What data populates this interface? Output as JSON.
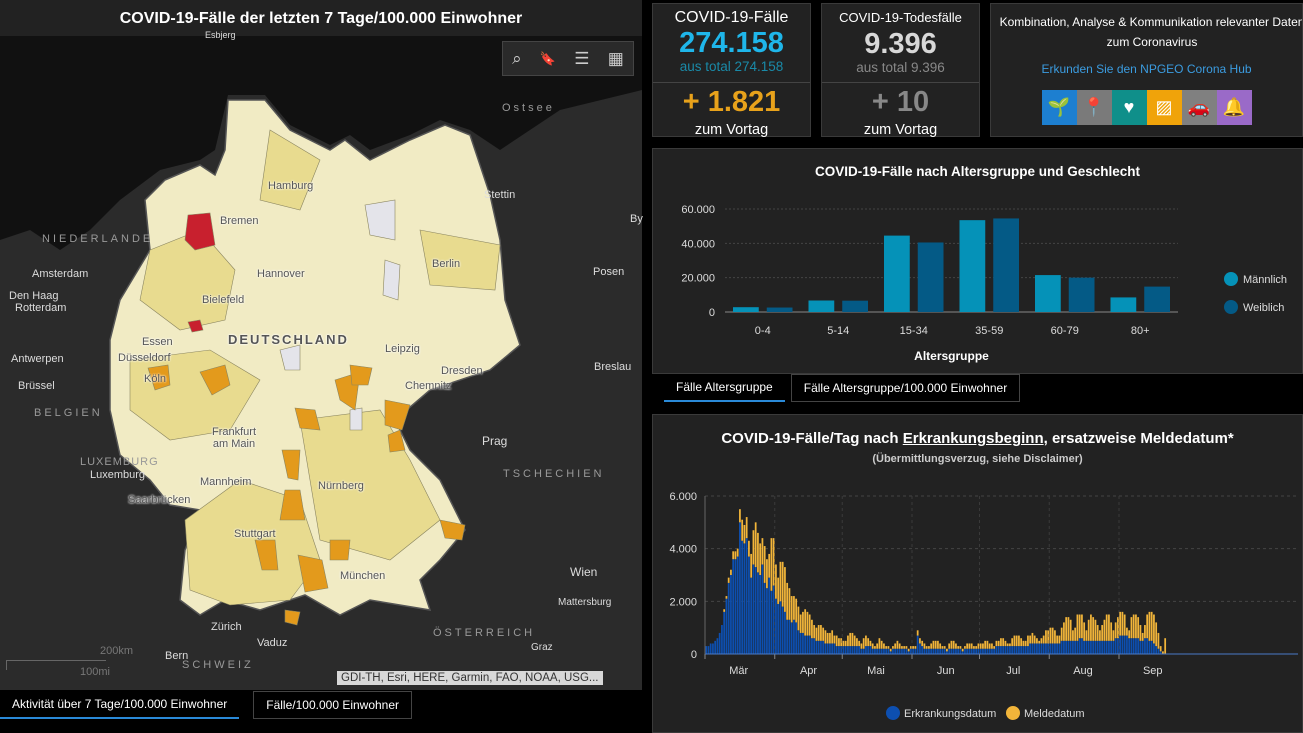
{
  "map": {
    "title": "COVID-19-Fälle der letzten 7 Tage/100.000 Einwohner",
    "tools": [
      {
        "icon": "search-icon",
        "glyph": "⌕"
      },
      {
        "icon": "bookmark-icon",
        "glyph": "🔖"
      },
      {
        "icon": "legend-list-icon",
        "glyph": "☰"
      },
      {
        "icon": "basemap-gallery-icon",
        "glyph": "▦"
      }
    ],
    "labels": {
      "esbjerg": "Esbjerg",
      "ostsee": "Ostsee",
      "niederlande": "NIEDERLANDE",
      "amsterdam": "Amsterdam",
      "denhaag": "Den Haag",
      "rotterdam": "Rotterdam",
      "antwerpen": "Antwerpen",
      "bruessel": "Brüssel",
      "belgien": "BELGIEN",
      "luxemburg_c": "LUXEMBURG",
      "luxemburg": "Luxemburg",
      "saarbruecken": "Saarbrücken",
      "hamburg": "Hamburg",
      "stettin": "Stettin",
      "bremen": "Bremen",
      "berlin": "Berlin",
      "posen": "Posen",
      "by": "By",
      "hannover": "Hannover",
      "bielefeld": "Bielefeld",
      "deutschland": "DEUTSCHLAND",
      "essen": "Essen",
      "duesseldorf": "Düsseldorf",
      "koeln": "Köln",
      "leipzig": "Leipzig",
      "dresden": "Dresden",
      "chemnitz": "Chemnitz",
      "breslau": "Breslau",
      "frankfurt": "Frankfurt am Main",
      "prag": "Prag",
      "tschechien": "TSCHECHIEN",
      "mannheim": "Mannheim",
      "nuernberg": "Nürnberg",
      "stuttgart": "Stuttgart",
      "muenchen": "München",
      "wien": "Wien",
      "mattersburg": "Mattersburg",
      "zuerich": "Zürich",
      "vaduz": "Vaduz",
      "bern": "Bern",
      "schweiz": "SCHWEIZ",
      "oesterreich": "ÖSTERREICH",
      "graz": "Graz"
    },
    "scale": {
      "km": "200km",
      "mi": "100mi"
    },
    "attribution": "GDI-TH, Esri, HERE, Garmin, FAO, NOAA, USG...",
    "colors": {
      "low": "#f1ebc4",
      "mid": "#e8db8f",
      "high": "#e39a1c",
      "very_high": "#c8202e",
      "no_data": "#e4e4ea"
    },
    "tabs": [
      "Aktivität über 7 Tage/100.000 Einwohner",
      "Fälle/100.000 Einwohner"
    ]
  },
  "kpi": {
    "cases": {
      "title": "COVID-19-Fälle",
      "value": "274.158",
      "total": "aus total 274.158",
      "delta": "+ 1.821",
      "delta_label": "zum Vortag",
      "color": "#1fb6ea",
      "delta_color": "#e8a21b"
    },
    "deaths": {
      "title": "COVID-19-Todesfälle",
      "value": "9.396",
      "total": "aus total 9.396",
      "delta": "+ 10",
      "delta_label": "zum Vortag",
      "color": "#d8d8d8"
    },
    "hub": {
      "text": "Kombination, Analyse & Kommunikation relevanter Daten zum Coronavirus",
      "link": "Erkunden Sie den NPGEO Corona Hub",
      "icons": [
        {
          "name": "plant-hand-icon",
          "color": "#1d7fd0",
          "glyph": "🌱"
        },
        {
          "name": "location-houses-icon",
          "color": "#7a7a7a",
          "glyph": "📍"
        },
        {
          "name": "heart-pulse-icon",
          "color": "#0f8f8a",
          "glyph": "♥"
        },
        {
          "name": "map-parcel-icon",
          "color": "#f0a30a",
          "glyph": "▨"
        },
        {
          "name": "cars-icon",
          "color": "#808080",
          "glyph": "🚗"
        },
        {
          "name": "bell-tower-icon",
          "color": "#9a6ac8",
          "glyph": "🔔"
        }
      ]
    }
  },
  "chart_data": [
    {
      "type": "bar",
      "title": "COVID-19-Fälle nach Altersgruppe und Geschlecht",
      "xlabel": "Altersgruppe",
      "ylabel": "",
      "categories": [
        "0-4",
        "5-14",
        "15-34",
        "35-59",
        "60-79",
        "80+"
      ],
      "series": [
        {
          "name": "Männlich",
          "values": [
            2800,
            6700,
            44500,
            53500,
            21500,
            8500
          ],
          "color": "#0592b8"
        },
        {
          "name": "Weiblich",
          "values": [
            2600,
            6600,
            40500,
            54500,
            20000,
            14800
          ],
          "color": "#045a86"
        }
      ],
      "ylim": [
        0,
        60000
      ],
      "yticks": [
        "0",
        "20.000",
        "40.000",
        "60.000"
      ],
      "grid": true,
      "legend": "right",
      "tabs": [
        "Fälle Altersgruppe",
        "Fälle Altersgruppe/100.000 Einwohner"
      ]
    },
    {
      "type": "bar",
      "stacked": true,
      "title_pre": "COVID-19-Fälle/Tag nach ",
      "title_link": "Erkrankungsbeginn",
      "title_post": ", ersatzweise Meldedatum*",
      "subtitle": "(Übermittlungsverzug, siehe Disclaimer)",
      "ylim": [
        0,
        6000
      ],
      "yticks": [
        "0",
        "2.000",
        "4.000",
        "6.000"
      ],
      "grid": true,
      "legend": "bottom",
      "series_names": [
        "Erkrankungsdatum",
        "Meldedatum"
      ],
      "colors": [
        "#0d4fb0",
        "#f2b53a"
      ],
      "months": [
        {
          "label": "Mär",
          "erkrankungsdatum": [
            300,
            300,
            400,
            400,
            500,
            600,
            800,
            1100,
            1600,
            2100,
            2700,
            3000,
            3600,
            3600,
            3700,
            5000,
            4300,
            4200,
            4400,
            3700,
            2900,
            3400,
            3300,
            3100,
            3000,
            3400,
            2700,
            2500,
            2900,
            2400,
            2600
          ],
          "meldedatum": [
            0,
            0,
            0,
            0,
            0,
            0,
            0,
            0,
            100,
            100,
            200,
            200,
            300,
            300,
            300,
            500,
            800,
            700,
            800,
            600,
            900,
            1300,
            1700,
            1500,
            1200,
            1000,
            1400,
            1100,
            900,
            2000,
            1800
          ]
        },
        {
          "label": "Apr",
          "erkrankungsdatum": [
            2100,
            1900,
            2000,
            1800,
            1600,
            1300,
            1300,
            1200,
            1300,
            1200,
            900,
            800,
            800,
            700,
            700,
            700,
            600,
            600,
            500,
            500,
            500,
            500,
            400,
            400,
            400,
            400,
            400,
            300,
            300,
            300
          ],
          "meldedatum": [
            1300,
            1000,
            1500,
            1700,
            1700,
            1400,
            1200,
            1000,
            900,
            900,
            900,
            700,
            800,
            1000,
            900,
            800,
            700,
            500,
            500,
            600,
            600,
            500,
            500,
            400,
            400,
            500,
            300,
            400,
            300,
            300
          ]
        },
        {
          "label": "Mai",
          "erkrankungsdatum": [
            300,
            300,
            300,
            300,
            300,
            300,
            300,
            300,
            200,
            200,
            300,
            300,
            300,
            200,
            200,
            200,
            200,
            200,
            200,
            200,
            200,
            100,
            200,
            200,
            200,
            200,
            200,
            200,
            200,
            100,
            200
          ],
          "meldedatum": [
            200,
            200,
            400,
            500,
            500,
            400,
            300,
            200,
            200,
            400,
            400,
            300,
            200,
            200,
            100,
            200,
            400,
            300,
            200,
            100,
            100,
            100,
            100,
            200,
            300,
            200,
            100,
            100,
            100,
            100,
            100
          ]
        },
        {
          "label": "Jun",
          "erkrankungsdatum": [
            200,
            200,
            700,
            400,
            300,
            200,
            200,
            200,
            200,
            200,
            200,
            200,
            200,
            200,
            200,
            100,
            200,
            200,
            200,
            200,
            200,
            200,
            100,
            200,
            200,
            200,
            200,
            200,
            200,
            200
          ],
          "meldedatum": [
            100,
            100,
            200,
            200,
            200,
            200,
            100,
            100,
            200,
            300,
            300,
            300,
            200,
            100,
            100,
            100,
            200,
            300,
            300,
            200,
            100,
            100,
            100,
            100,
            200,
            200,
            200,
            100,
            100,
            200
          ]
        },
        {
          "label": "Jul",
          "erkrankungsdatum": [
            200,
            200,
            200,
            200,
            200,
            200,
            200,
            300,
            300,
            300,
            300,
            300,
            300,
            300,
            300,
            300,
            300,
            300,
            300,
            300,
            300,
            300,
            400,
            400,
            400,
            400,
            400,
            400,
            400,
            400,
            400
          ],
          "meldedatum": [
            200,
            200,
            300,
            300,
            200,
            200,
            100,
            200,
            200,
            300,
            300,
            200,
            100,
            100,
            300,
            400,
            400,
            400,
            300,
            200,
            200,
            400,
            300,
            400,
            300,
            200,
            100,
            200,
            300,
            500,
            500
          ]
        },
        {
          "label": "Aug",
          "erkrankungsdatum": [
            400,
            400,
            400,
            400,
            400,
            500,
            500,
            500,
            500,
            500,
            500,
            500,
            500,
            600,
            600,
            500,
            500,
            500,
            500,
            500,
            500,
            500,
            500,
            500,
            500,
            500,
            500,
            500,
            500,
            600,
            600
          ],
          "meldedatum": [
            600,
            600,
            500,
            300,
            300,
            500,
            700,
            900,
            900,
            800,
            400,
            500,
            1000,
            900,
            900,
            700,
            400,
            800,
            1000,
            900,
            800,
            600,
            400,
            600,
            800,
            1000,
            1000,
            700,
            400,
            600,
            800
          ]
        },
        {
          "label": "Sep",
          "erkrankungsdatum": [
            700,
            700,
            700,
            700,
            600,
            600,
            600,
            600,
            600,
            500,
            500,
            600,
            600,
            500,
            500,
            400,
            300,
            200,
            100,
            0,
            0
          ],
          "meldedatum": [
            900,
            900,
            800,
            300,
            300,
            800,
            900,
            900,
            800,
            600,
            300,
            500,
            900,
            1100,
            1100,
            1100,
            900,
            600,
            200,
            100,
            600
          ]
        }
      ]
    }
  ]
}
